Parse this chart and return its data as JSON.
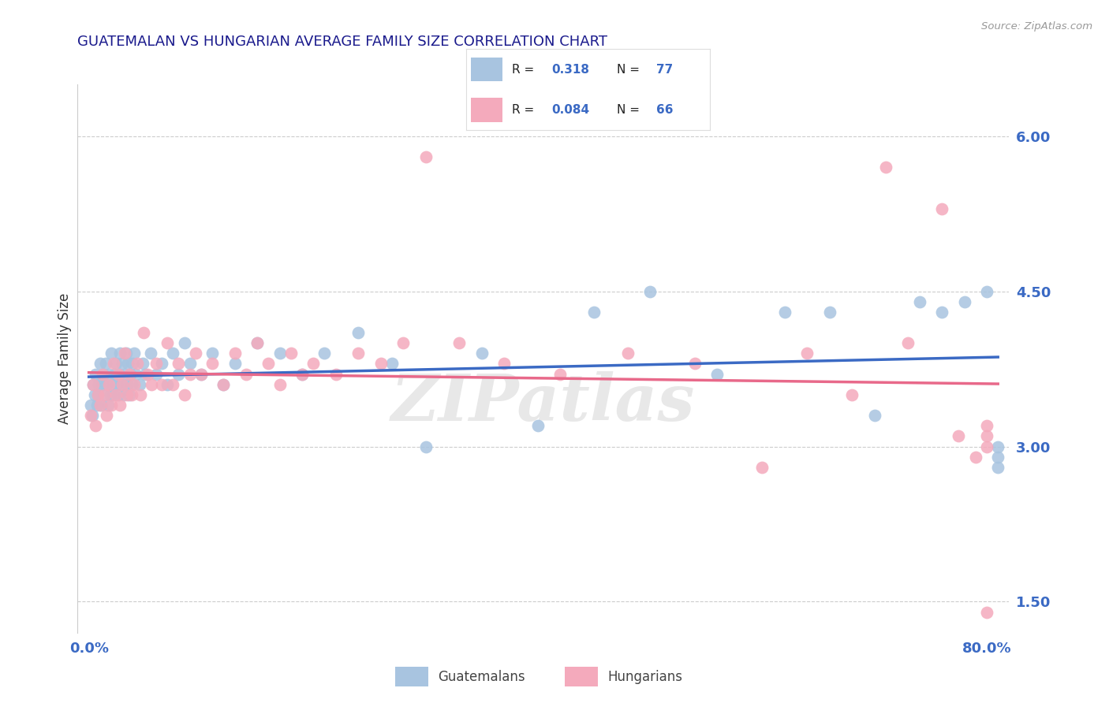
{
  "title": "GUATEMALAN VS HUNGARIAN AVERAGE FAMILY SIZE CORRELATION CHART",
  "source_text": "Source: ZipAtlas.com",
  "ylabel": "Average Family Size",
  "y_ticks_right": [
    1.5,
    3.0,
    4.5,
    6.0
  ],
  "y_tick_labels": [
    "1.50",
    "3.00",
    "4.50",
    "6.00"
  ],
  "xlim": [
    -0.01,
    0.82
  ],
  "ylim": [
    1.2,
    6.5
  ],
  "blue_color": "#A8C4E0",
  "pink_color": "#F4AABC",
  "blue_line_color": "#3B6AC4",
  "pink_line_color": "#E8698A",
  "title_color": "#1A1A8C",
  "axis_label_color": "#333333",
  "tick_color": "#3B6AC4",
  "grid_color": "#CCCCCC",
  "background_color": "#FFFFFF",
  "watermark_text": "ZIPatlas",
  "legend_label_blue": "Guatemalans",
  "legend_label_pink": "Hungarians",
  "blue_scatter_x": [
    0.002,
    0.003,
    0.004,
    0.005,
    0.006,
    0.007,
    0.008,
    0.009,
    0.01,
    0.011,
    0.012,
    0.013,
    0.014,
    0.015,
    0.016,
    0.017,
    0.018,
    0.019,
    0.02,
    0.021,
    0.022,
    0.023,
    0.024,
    0.025,
    0.026,
    0.027,
    0.028,
    0.029,
    0.03,
    0.031,
    0.032,
    0.033,
    0.034,
    0.035,
    0.036,
    0.037,
    0.038,
    0.039,
    0.04,
    0.042,
    0.045,
    0.048,
    0.05,
    0.055,
    0.06,
    0.065,
    0.07,
    0.075,
    0.08,
    0.085,
    0.09,
    0.1,
    0.11,
    0.12,
    0.13,
    0.15,
    0.17,
    0.19,
    0.21,
    0.24,
    0.27,
    0.3,
    0.35,
    0.4,
    0.45,
    0.5,
    0.56,
    0.62,
    0.66,
    0.7,
    0.74,
    0.76,
    0.78,
    0.8,
    0.81,
    0.81,
    0.81
  ],
  "blue_scatter_y": [
    3.4,
    3.3,
    3.6,
    3.5,
    3.7,
    3.4,
    3.5,
    3.6,
    3.8,
    3.4,
    3.6,
    3.7,
    3.5,
    3.8,
    3.6,
    3.4,
    3.7,
    3.5,
    3.9,
    3.6,
    3.5,
    3.7,
    3.8,
    3.6,
    3.5,
    3.7,
    3.9,
    3.6,
    3.8,
    3.5,
    3.7,
    3.9,
    3.6,
    3.8,
    3.5,
    3.7,
    3.6,
    3.8,
    3.9,
    3.7,
    3.6,
    3.8,
    3.7,
    3.9,
    3.7,
    3.8,
    3.6,
    3.9,
    3.7,
    4.0,
    3.8,
    3.7,
    3.9,
    3.6,
    3.8,
    4.0,
    3.9,
    3.7,
    3.9,
    4.1,
    3.8,
    3.0,
    3.9,
    3.2,
    4.3,
    4.5,
    3.7,
    4.3,
    4.3,
    3.3,
    4.4,
    4.3,
    4.4,
    4.5,
    2.8,
    2.9,
    3.0
  ],
  "pink_scatter_x": [
    0.002,
    0.004,
    0.006,
    0.008,
    0.01,
    0.012,
    0.014,
    0.016,
    0.018,
    0.02,
    0.022,
    0.024,
    0.026,
    0.028,
    0.03,
    0.032,
    0.034,
    0.036,
    0.038,
    0.04,
    0.043,
    0.046,
    0.049,
    0.052,
    0.056,
    0.06,
    0.065,
    0.07,
    0.075,
    0.08,
    0.085,
    0.09,
    0.095,
    0.1,
    0.11,
    0.12,
    0.13,
    0.14,
    0.15,
    0.16,
    0.17,
    0.18,
    0.19,
    0.2,
    0.22,
    0.24,
    0.26,
    0.28,
    0.3,
    0.33,
    0.37,
    0.42,
    0.48,
    0.54,
    0.6,
    0.64,
    0.68,
    0.71,
    0.73,
    0.76,
    0.775,
    0.79,
    0.8,
    0.8,
    0.8,
    0.8
  ],
  "pink_scatter_y": [
    3.3,
    3.6,
    3.2,
    3.5,
    3.4,
    3.7,
    3.5,
    3.3,
    3.6,
    3.4,
    3.8,
    3.5,
    3.7,
    3.4,
    3.6,
    3.9,
    3.5,
    3.7,
    3.5,
    3.6,
    3.8,
    3.5,
    4.1,
    3.7,
    3.6,
    3.8,
    3.6,
    4.0,
    3.6,
    3.8,
    3.5,
    3.7,
    3.9,
    3.7,
    3.8,
    3.6,
    3.9,
    3.7,
    4.0,
    3.8,
    3.6,
    3.9,
    3.7,
    3.8,
    3.7,
    3.9,
    3.8,
    4.0,
    5.8,
    4.0,
    3.8,
    3.7,
    3.9,
    3.8,
    2.8,
    3.9,
    3.5,
    5.7,
    4.0,
    5.3,
    3.1,
    2.9,
    3.0,
    3.1,
    3.2,
    1.4
  ]
}
